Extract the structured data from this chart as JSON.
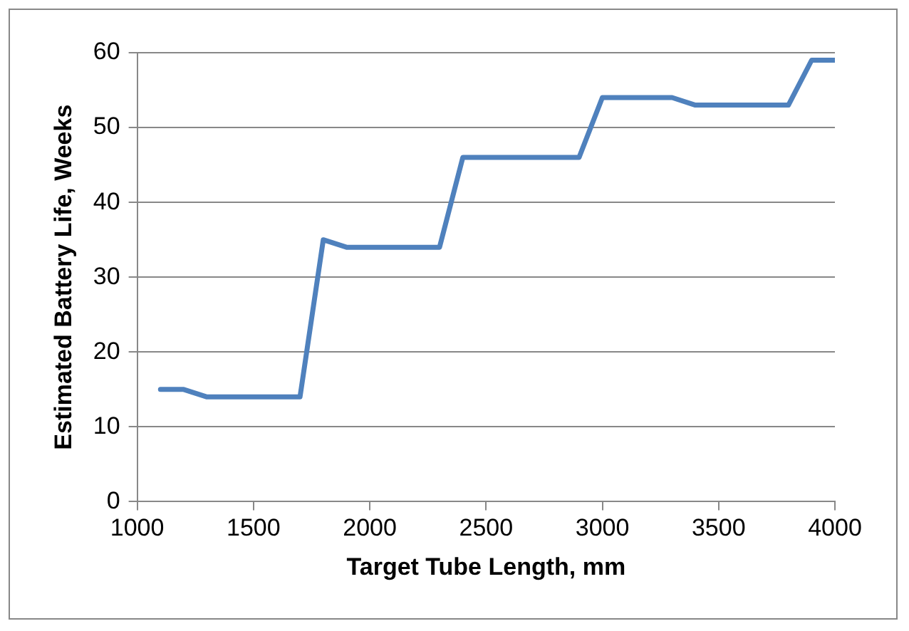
{
  "chart_data": {
    "type": "line",
    "xlabel": "Target Tube Length, mm",
    "ylabel": "Estimated Battery Life, Weeks",
    "x": [
      1100,
      1200,
      1300,
      1400,
      1500,
      1600,
      1700,
      1800,
      1900,
      2000,
      2100,
      2200,
      2300,
      2400,
      2500,
      2600,
      2700,
      2800,
      2900,
      3000,
      3100,
      3200,
      3300,
      3400,
      3500,
      3600,
      3700,
      3800,
      3900,
      4000
    ],
    "series": [
      {
        "color": "#4f81bd",
        "values": [
          15,
          15,
          14,
          14,
          14,
          14,
          14,
          35,
          34,
          34,
          34,
          34,
          34,
          46,
          46,
          46,
          46,
          46,
          46,
          54,
          54,
          54,
          54,
          53,
          53,
          53,
          53,
          53,
          59,
          59
        ]
      }
    ],
    "xlim": [
      1000,
      4000
    ],
    "xticks": [
      1000,
      1500,
      2000,
      2500,
      3000,
      3500,
      4000
    ],
    "ylim": [
      0,
      60
    ],
    "yticks": [
      0,
      10,
      20,
      30,
      40,
      50,
      60
    ],
    "grid": "y",
    "legend": false,
    "marker": "none",
    "line_style": "solid"
  }
}
